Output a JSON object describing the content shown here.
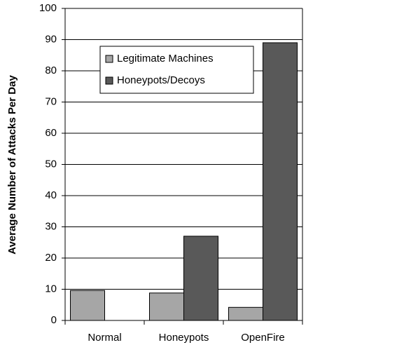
{
  "chart_data": {
    "type": "bar",
    "y_label": "Average Number of Attacks Per Day",
    "categories": [
      "Normal",
      "Honeypots",
      "OpenFire"
    ],
    "series": [
      {
        "name": "Legitimate Machines",
        "color": "#a6a6a6",
        "values": [
          9.6,
          8.8,
          4.2
        ]
      },
      {
        "name": "Honeypots/Decoys",
        "color": "#595959",
        "values": [
          null,
          27,
          89
        ]
      }
    ],
    "ylim": [
      0,
      100
    ],
    "yticks": [
      0,
      10,
      20,
      30,
      40,
      50,
      60,
      70,
      80,
      90,
      100
    ],
    "grid": true
  }
}
